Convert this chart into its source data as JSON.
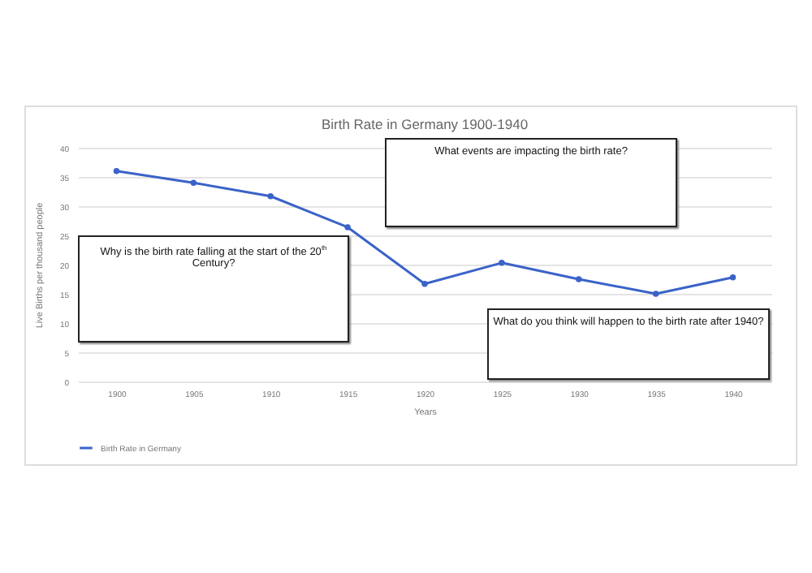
{
  "chart_data": {
    "type": "line",
    "title": "Birth Rate in Germany 1900-1940",
    "xlabel": "Years",
    "ylabel": "Live Births per thousand people",
    "categories": [
      "1900",
      "1905",
      "1910",
      "1915",
      "1920",
      "1925",
      "1930",
      "1935",
      "1940"
    ],
    "series": [
      {
        "name": "Birth Rate in Germany",
        "color": "#3a63c8",
        "values": [
          36,
          34,
          31.7,
          26.4,
          16.7,
          20.3,
          17.5,
          15,
          17.8
        ]
      }
    ],
    "ylim": [
      0,
      40
    ],
    "yticks": [
      0,
      5,
      10,
      15,
      20,
      25,
      30,
      35,
      40
    ],
    "grid": "y",
    "legend": "bottom",
    "marker": "circle",
    "line_style": "solid",
    "annotations": [
      "What events are impacting the birth rate?",
      "Why is the birth rate falling at the start of the 20$^{th}$ Century?",
      "What do you think will happen to the birth rate after 1940?"
    ]
  }
}
